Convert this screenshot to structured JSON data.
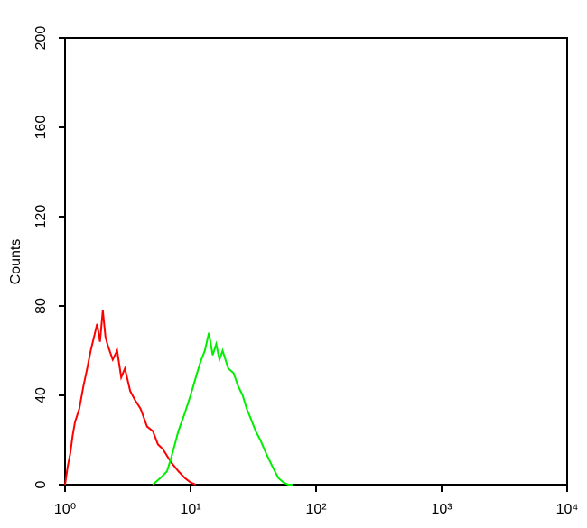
{
  "chart_data": {
    "type": "line",
    "y_label": "Counts",
    "log_x": true,
    "xlim": [
      1,
      10000
    ],
    "ylim": [
      0,
      200
    ],
    "xticks": [
      {
        "value": 1,
        "label": "10⁰"
      },
      {
        "value": 10,
        "label": "10¹"
      },
      {
        "value": 100,
        "label": "10²"
      },
      {
        "value": 1000,
        "label": "10³"
      },
      {
        "value": 10000,
        "label": "10⁴"
      }
    ],
    "yticks": [
      0,
      40,
      80,
      120,
      160,
      200
    ],
    "series": [
      {
        "color": "#ff0000",
        "x": [
          1,
          1.05,
          1.1,
          1.15,
          1.2,
          1.3,
          1.4,
          1.5,
          1.6,
          1.7,
          1.8,
          1.9,
          2,
          2.1,
          2.2,
          2.4,
          2.6,
          2.8,
          3,
          3.3,
          3.6,
          4,
          4.5,
          5,
          5.5,
          6,
          7,
          8,
          9,
          10,
          11
        ],
        "values": [
          0,
          8,
          14,
          22,
          28,
          34,
          44,
          52,
          60,
          66,
          72,
          64,
          78,
          66,
          62,
          56,
          60,
          48,
          52,
          42,
          38,
          34,
          26,
          24,
          18,
          16,
          10,
          6,
          3,
          1,
          0
        ]
      },
      {
        "color": "#00ee00",
        "x": [
          5,
          5.5,
          6,
          6.5,
          7,
          7.5,
          8,
          9,
          10,
          11,
          12,
          13,
          14,
          15,
          16,
          17,
          18,
          20,
          22,
          24,
          26,
          28,
          30,
          33,
          36,
          40,
          45,
          50,
          55,
          60,
          65
        ],
        "values": [
          0,
          2,
          4,
          6,
          12,
          18,
          24,
          32,
          40,
          48,
          55,
          60,
          68,
          58,
          63,
          56,
          60,
          52,
          50,
          44,
          40,
          34,
          30,
          24,
          20,
          14,
          8,
          3,
          1,
          0,
          0
        ]
      }
    ]
  }
}
